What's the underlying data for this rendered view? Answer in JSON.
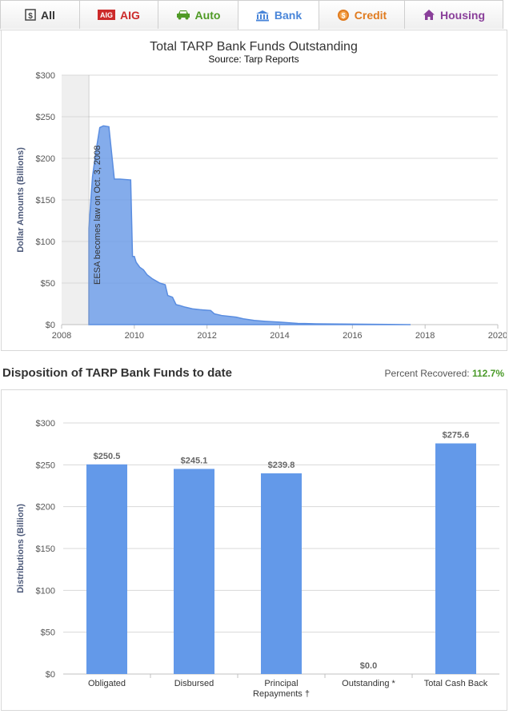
{
  "tabs": [
    {
      "label": "All",
      "icon": "dollar-doc-icon",
      "color": "#333333"
    },
    {
      "label": "AIG",
      "icon": "aig-logo-icon",
      "color": "#cc2a2a"
    },
    {
      "label": "Auto",
      "icon": "car-icon",
      "color": "#4f9a25"
    },
    {
      "label": "Bank",
      "icon": "bank-icon",
      "color": "#4a86d9",
      "active": true
    },
    {
      "label": "Credit",
      "icon": "coin-icon",
      "color": "#e07b1f"
    },
    {
      "label": "Housing",
      "icon": "house-icon",
      "color": "#8a3f9a"
    }
  ],
  "aig_logo_text": "AIG",
  "section": {
    "title": "Disposition of TARP Bank Funds to date",
    "recovered_label": "Percent Recovered:",
    "recovered_value": "112.7%"
  },
  "chart_data": [
    {
      "type": "area",
      "title": "Total TARP Bank Funds Outstanding",
      "subtitle": "Source: Tarp Reports",
      "xlabel": "",
      "ylabel": "Dollar Amounts (Billions)",
      "xlim": [
        2008,
        2020
      ],
      "ylim": [
        0,
        300
      ],
      "x_ticks": [
        "2008",
        "2010",
        "2012",
        "2014",
        "2016",
        "2018",
        "2020"
      ],
      "y_ticks": [
        "$0",
        "$50",
        "$100",
        "$150",
        "$200",
        "$250",
        "$300"
      ],
      "grid": true,
      "color": "#6f9ee8",
      "annotation": {
        "text": "EESA becomes law on Oct. 3, 2008",
        "x": 2008.75
      },
      "series": [
        {
          "x": [
            2008.75,
            2008.85,
            2008.95,
            2009.05,
            2009.15,
            2009.3,
            2009.45,
            2009.55,
            2009.6,
            2009.9,
            2009.95,
            2010.0,
            2010.05,
            2010.15,
            2010.25,
            2010.35,
            2010.5,
            2010.7,
            2010.85,
            2010.92,
            2011.05,
            2011.15,
            2011.25,
            2011.4,
            2011.6,
            2011.8,
            2012.1,
            2012.2,
            2012.4,
            2012.8,
            2013.0,
            2013.3,
            2013.6,
            2014.0,
            2014.5,
            2015.0,
            2016.0,
            2017.0,
            2017.6
          ],
          "y": [
            116,
            178,
            210,
            237,
            239,
            238,
            175,
            175,
            175,
            174,
            82,
            82,
            75,
            69,
            66,
            60,
            55,
            50,
            48,
            35,
            33,
            24,
            23,
            21,
            19,
            18,
            17,
            13,
            11,
            9,
            7,
            5,
            4,
            3,
            1.5,
            1.0,
            0.6,
            0.2,
            0.0
          ]
        }
      ]
    },
    {
      "type": "bar",
      "title": "",
      "xlabel": "",
      "ylabel": "Distributions (Billion)",
      "ylim": [
        0,
        300
      ],
      "y_ticks": [
        "$0",
        "$50",
        "$100",
        "$150",
        "$200",
        "$250",
        "$300"
      ],
      "grid": true,
      "color": "#6399e9",
      "categories": [
        [
          "Obligated"
        ],
        [
          "Disbursed"
        ],
        [
          "Principal",
          "Repayments †"
        ],
        [
          "Outstanding *"
        ],
        [
          "Total Cash Back"
        ]
      ],
      "values": [
        250.5,
        245.1,
        239.8,
        0.0,
        275.6
      ],
      "value_labels": [
        "$250.5",
        "$245.1",
        "$239.8",
        "$0.0",
        "$275.6"
      ]
    }
  ]
}
